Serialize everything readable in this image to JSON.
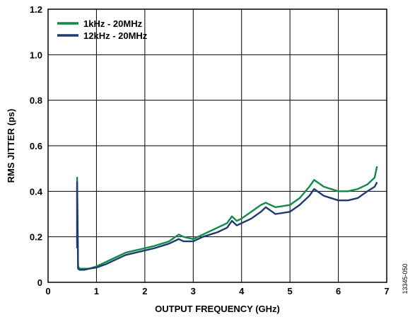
{
  "chart_data": {
    "type": "line",
    "xlabel": "OUTPUT FREQUENCY (GHz)",
    "ylabel": "RMS JITTER (ps)",
    "xlim": [
      0,
      7
    ],
    "ylim": [
      0,
      1.2
    ],
    "x_ticks": [
      "0",
      "1",
      "2",
      "3",
      "4",
      "5",
      "6",
      "7"
    ],
    "y_ticks": [
      "0",
      "0.2",
      "0.4",
      "0.6",
      "0.8",
      "1.0",
      "1.2"
    ],
    "grid": true,
    "legend": "top-left",
    "series": [
      {
        "name": "1kHz - 20MHz",
        "color": "#0f8a4a",
        "x": [
          0.6,
          0.6,
          0.62,
          0.65,
          0.75,
          0.85,
          1.0,
          1.2,
          1.4,
          1.6,
          1.8,
          2.0,
          2.2,
          2.5,
          2.7,
          2.8,
          3.0,
          3.2,
          3.5,
          3.7,
          3.8,
          3.9,
          4.0,
          4.2,
          4.4,
          4.5,
          4.7,
          5.0,
          5.2,
          5.4,
          5.5,
          5.7,
          6.0,
          6.2,
          6.4,
          6.6,
          6.75,
          6.8
        ],
        "y": [
          0.17,
          0.46,
          0.07,
          0.06,
          0.06,
          0.06,
          0.07,
          0.09,
          0.11,
          0.13,
          0.14,
          0.15,
          0.16,
          0.18,
          0.21,
          0.2,
          0.19,
          0.21,
          0.24,
          0.26,
          0.29,
          0.27,
          0.28,
          0.31,
          0.34,
          0.35,
          0.33,
          0.34,
          0.37,
          0.42,
          0.45,
          0.42,
          0.4,
          0.4,
          0.41,
          0.43,
          0.46,
          0.51
        ]
      },
      {
        "name": "12kHz - 20MHz",
        "color": "#1e3a6e",
        "x": [
          0.6,
          0.6,
          0.62,
          0.65,
          0.75,
          0.85,
          1.0,
          1.2,
          1.4,
          1.6,
          1.8,
          2.0,
          2.2,
          2.5,
          2.7,
          2.8,
          3.0,
          3.2,
          3.5,
          3.7,
          3.8,
          3.9,
          4.0,
          4.2,
          4.4,
          4.5,
          4.7,
          5.0,
          5.2,
          5.4,
          5.5,
          5.7,
          6.0,
          6.2,
          6.4,
          6.6,
          6.75,
          6.8
        ],
        "y": [
          0.15,
          0.44,
          0.06,
          0.055,
          0.055,
          0.06,
          0.065,
          0.08,
          0.1,
          0.12,
          0.13,
          0.14,
          0.15,
          0.17,
          0.19,
          0.18,
          0.18,
          0.2,
          0.22,
          0.24,
          0.27,
          0.25,
          0.26,
          0.28,
          0.31,
          0.33,
          0.3,
          0.31,
          0.34,
          0.38,
          0.41,
          0.38,
          0.36,
          0.36,
          0.37,
          0.4,
          0.42,
          0.44
        ]
      }
    ]
  },
  "figure_id": "13345-050"
}
